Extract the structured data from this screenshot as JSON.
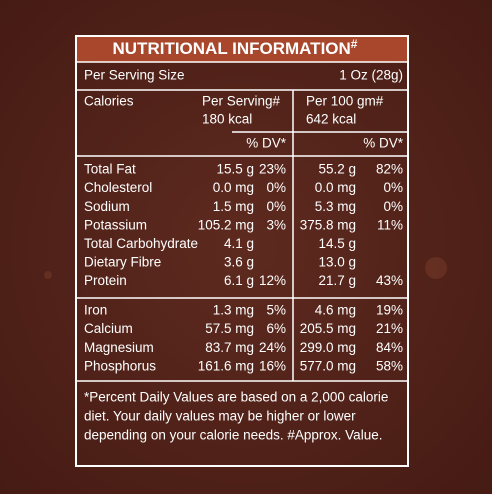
{
  "header": {
    "title": "NUTRITIONAL INFORMATION",
    "title_mark": "#"
  },
  "serving": {
    "label": "Per Serving Size",
    "value": "1 Oz (28g)"
  },
  "calories": {
    "label": "Calories",
    "per_serving": {
      "heading": "Per Serving#",
      "value": "180 kcal"
    },
    "per_100g": {
      "heading": "Per 100 gm#",
      "value": "642 kcal"
    }
  },
  "dv_headers": [
    "% DV*",
    "% DV*"
  ],
  "groups": [
    [
      [
        "Total Fat",
        "15.5 g",
        "23%",
        "55.2 g",
        "82%"
      ],
      [
        "Cholesterol",
        "0.0 mg",
        "0%",
        "0.0 mg",
        "0%"
      ],
      [
        "Sodium",
        "1.5 mg",
        "0%",
        "5.3 mg",
        "0%"
      ],
      [
        "Potassium",
        "105.2 mg",
        "3%",
        "375.8 mg",
        "11%"
      ],
      [
        "Total Carbohydrate",
        "4.1 g",
        null,
        "14.5 g",
        null
      ],
      [
        "Dietary Fibre",
        "3.6 g",
        null,
        "13.0 g",
        null
      ],
      [
        "Protein",
        "6.1 g",
        "12%",
        "21.7 g",
        "43%"
      ]
    ],
    [
      [
        "Iron",
        "1.3 mg",
        "5%",
        "4.6 mg",
        "19%"
      ],
      [
        "Calcium",
        "57.5 mg",
        "6%",
        "205.5 mg",
        "21%"
      ],
      [
        "Magnesium",
        "83.7 mg",
        "24%",
        "299.0 mg",
        "84%"
      ],
      [
        "Phosphorus",
        "161.6 mg",
        "16%",
        "577.0 mg",
        "58%"
      ]
    ]
  ],
  "footnote": [
    "*Percent Daily Values are based on a 2,000 calorie",
    "diet. Your daily values may be higher or lower",
    "depending on your calorie needs. #Approx. Value."
  ]
}
